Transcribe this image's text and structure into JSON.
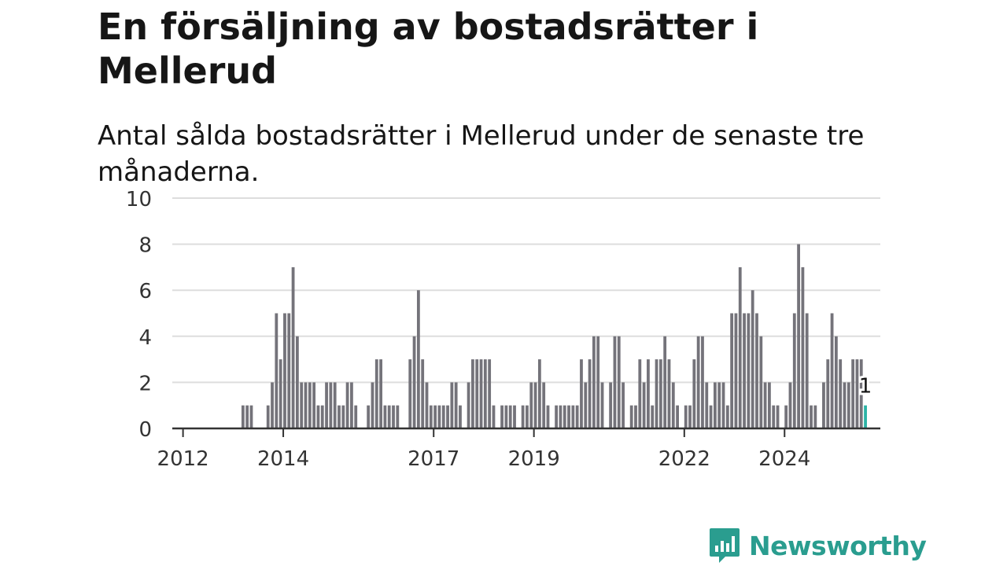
{
  "header": {
    "title": "En försäljning av bostadsrätter i Mellerud",
    "subtitle": "Antal sålda bostadsrätter i Mellerud under de senaste tre månaderna."
  },
  "brand": {
    "name": "Newsworthy",
    "color": "#2a9d8f",
    "icon": "newsworthy-logo-icon"
  },
  "colors": {
    "bar": "#74737a",
    "highlight": "#2bb3a5",
    "grid": "#dddddd",
    "axis": "#333333"
  },
  "chart_data": {
    "type": "bar",
    "title": "En försäljning av bostadsrätter i Mellerud",
    "subtitle": "Antal sålda bostadsrätter i Mellerud under de senaste tre månaderna.",
    "xlabel": "",
    "ylabel": "",
    "ylim": [
      0,
      10
    ],
    "yticks": [
      "0",
      "2",
      "4",
      "6",
      "8",
      "10"
    ],
    "xticks": [
      "2012",
      "2014",
      "2017",
      "2019",
      "2022",
      "2024"
    ],
    "grid": true,
    "x_start": "2011-11",
    "x_step": "month",
    "values": [
      0,
      0,
      0,
      0,
      0,
      0,
      0,
      0,
      0,
      0,
      0,
      0,
      0,
      0,
      0,
      0,
      1,
      1,
      1,
      0,
      0,
      0,
      1,
      2,
      5,
      3,
      5,
      5,
      7,
      4,
      2,
      2,
      2,
      2,
      1,
      1,
      2,
      2,
      2,
      1,
      1,
      2,
      2,
      1,
      0,
      0,
      1,
      2,
      3,
      3,
      1,
      1,
      1,
      1,
      0,
      0,
      3,
      4,
      6,
      3,
      2,
      1,
      1,
      1,
      1,
      1,
      2,
      2,
      1,
      0,
      2,
      3,
      3,
      3,
      3,
      3,
      1,
      0,
      1,
      1,
      1,
      1,
      0,
      1,
      1,
      2,
      2,
      3,
      2,
      1,
      0,
      1,
      1,
      1,
      1,
      1,
      1,
      3,
      2,
      3,
      4,
      4,
      2,
      0,
      2,
      4,
      4,
      2,
      0,
      1,
      1,
      3,
      2,
      3,
      1,
      3,
      3,
      4,
      3,
      2,
      1,
      0,
      1,
      1,
      3,
      4,
      4,
      2,
      1,
      2,
      2,
      2,
      1,
      5,
      5,
      7,
      5,
      5,
      6,
      5,
      4,
      2,
      2,
      1,
      1,
      0,
      1,
      2,
      5,
      8,
      7,
      5,
      1,
      1,
      0,
      2,
      3,
      5,
      4,
      3,
      2,
      2,
      3,
      3,
      3,
      1
    ],
    "highlight_index": 165,
    "annotation": "1"
  }
}
